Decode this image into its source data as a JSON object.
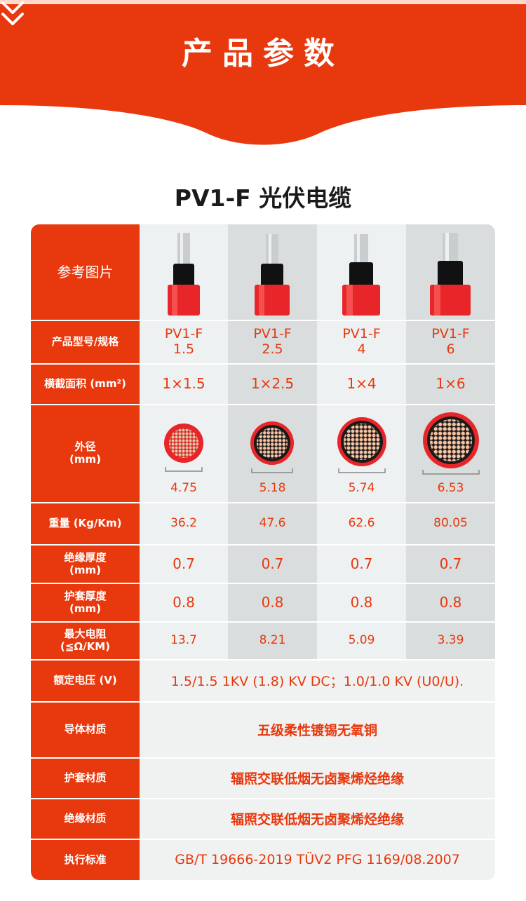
{
  "header": {
    "title": "产品参数",
    "chevron_icon": "double-chevron-down-icon"
  },
  "product_title": "PV1-F 光伏电缆",
  "colors": {
    "accent": "#e8380d",
    "band_light": "#eef1f1",
    "band_dark": "#d9dddd"
  },
  "table": {
    "labels": {
      "image": "参考图片",
      "spec": "产品型号/规格",
      "area": "横截面积 (mm²)",
      "diameter": "外径\n(mm)",
      "weight": "重量 (Kg/Km)",
      "insulation_thickness": "绝缘厚度\n(mm)",
      "sheath_thickness": "护套厚度\n(mm)",
      "max_resistance": "最大电阻\n(≦Ω/KM)",
      "rated_voltage": "额定电压 (V)",
      "conductor": "导体材质",
      "sheath_material": "护套材质",
      "insulation_material": "绝缘材质",
      "standard": "执行标准"
    },
    "columns": [
      {
        "spec": "PV1-F\n1.5",
        "area": "1×1.5",
        "diameter": "4.75",
        "weight": "36.2",
        "insulation": "0.7",
        "sheath": "0.8",
        "resistance": "13.7"
      },
      {
        "spec": "PV1-F\n2.5",
        "area": "1×2.5",
        "diameter": "5.18",
        "weight": "47.6",
        "insulation": "0.7",
        "sheath": "0.8",
        "resistance": "8.21"
      },
      {
        "spec": "PV1-F\n4",
        "area": "1×4",
        "diameter": "5.74",
        "weight": "62.6",
        "insulation": "0.7",
        "sheath": "0.8",
        "resistance": "5.09"
      },
      {
        "spec": "PV1-F\n6",
        "area": "1×6",
        "diameter": "6.53",
        "weight": "80.05",
        "insulation": "0.7",
        "sheath": "0.8",
        "resistance": "3.39"
      }
    ],
    "merged": {
      "rated_voltage": "1.5/1.5 1KV (1.8) KV DC；1.0/1.0 KV (U0/U).",
      "conductor": "五级柔性镀锡无氧铜",
      "sheath_material": "辐照交联低烟无卤聚烯烃绝缘",
      "insulation_material": "辐照交联低烟无卤聚烯烃绝缘",
      "standard": "GB/T 19666-2019 TÜV2 PFG 1169/08.2007"
    }
  }
}
